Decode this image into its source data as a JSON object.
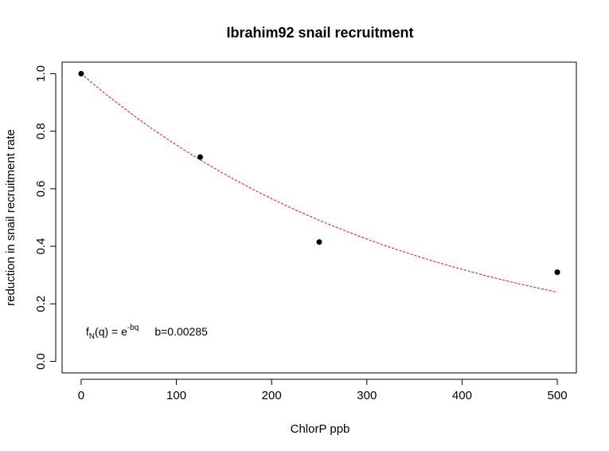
{
  "chart_data": {
    "type": "scatter",
    "title": "Ibrahim92 snail recruitment",
    "xlabel": "ChlorP ppb",
    "ylabel": "reduction in snail recruitment rate",
    "xlim": [
      -20,
      520
    ],
    "ylim": [
      -0.04,
      1.04
    ],
    "x_ticks": [
      0,
      100,
      200,
      300,
      400,
      500
    ],
    "y_ticks": [
      0.0,
      0.2,
      0.4,
      0.6,
      0.8,
      1.0
    ],
    "x_tick_labels": [
      "0",
      "100",
      "200",
      "300",
      "400",
      "500"
    ],
    "y_tick_labels": [
      "0.0",
      "0.2",
      "0.4",
      "0.6",
      "0.8",
      "1.0"
    ],
    "grid": false,
    "series": [
      {
        "kind": "points",
        "x": [
          0,
          125,
          250,
          500
        ],
        "y": [
          1.0,
          0.71,
          0.415,
          0.31
        ],
        "color": "#000000"
      },
      {
        "kind": "fit",
        "model": "exponential",
        "b": 0.00285,
        "x_range": [
          0,
          500
        ],
        "color": "#ff0000",
        "dash": true
      }
    ],
    "annotation": {
      "f": "f",
      "sub": "N",
      "mid": "(q) = e",
      "sup": "-bq",
      "param": "b=0.00285",
      "x": 5,
      "y": 0.09
    }
  }
}
